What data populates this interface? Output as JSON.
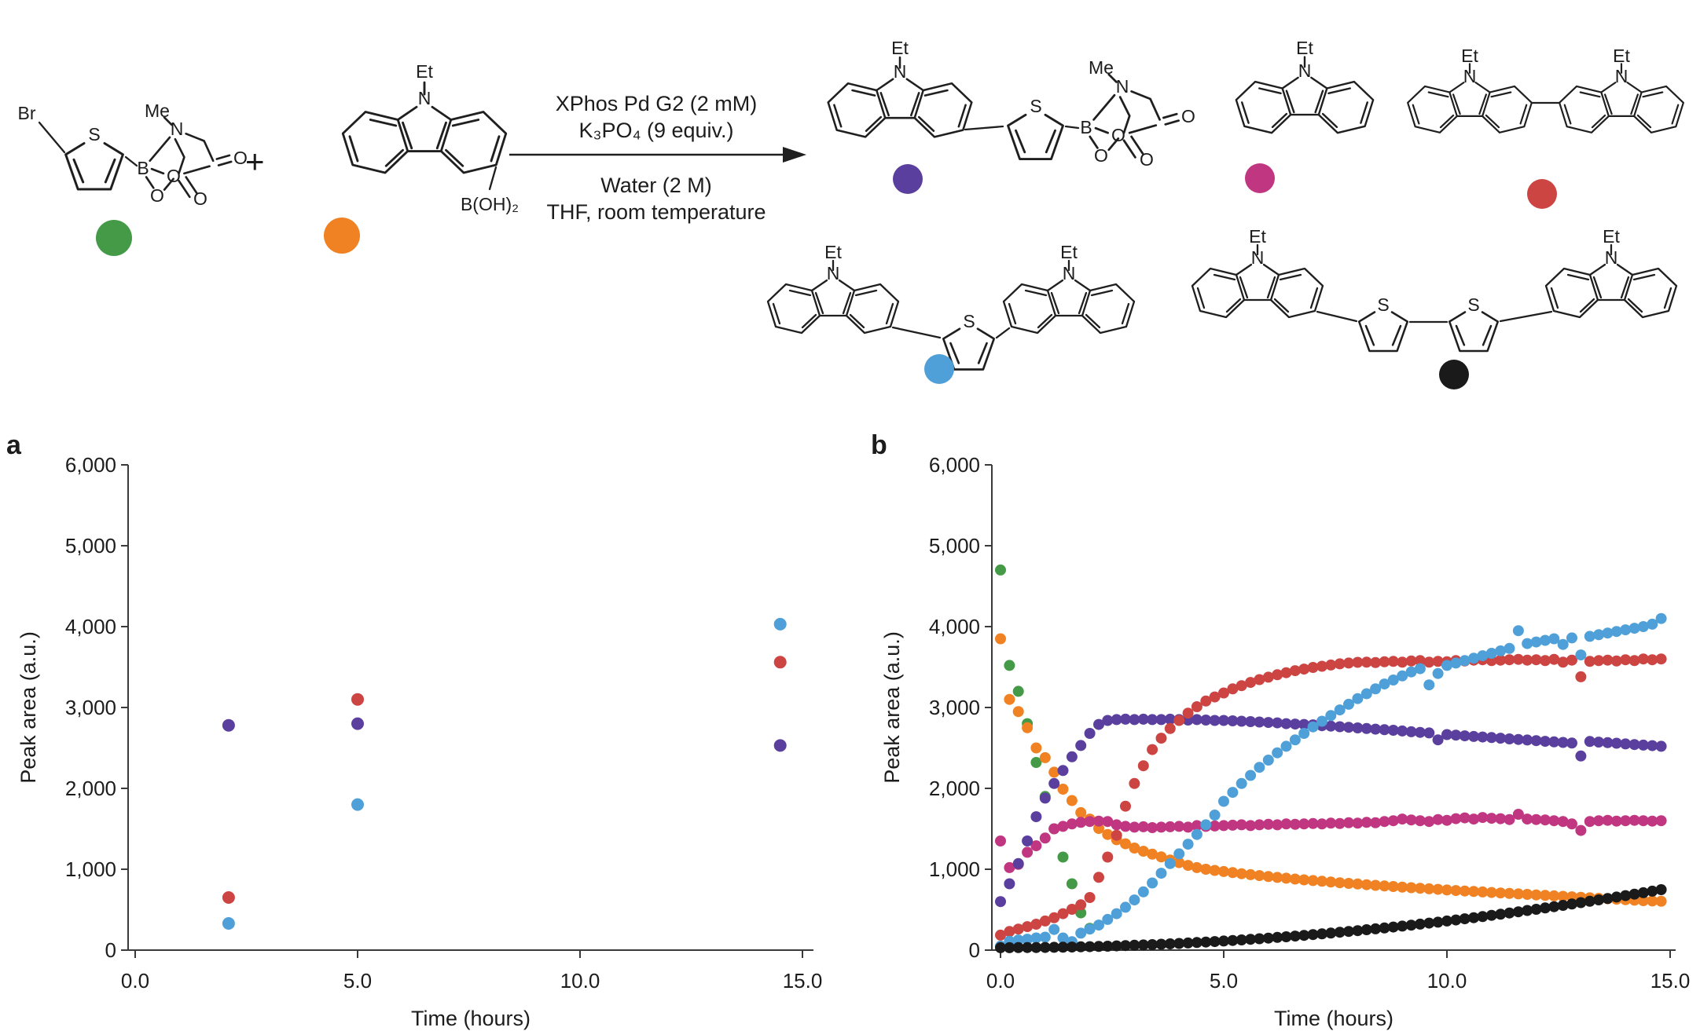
{
  "scheme": {
    "plus": "+",
    "labels": {
      "br": "Br",
      "s": "S",
      "b": "B",
      "n": "N",
      "me": "Me",
      "et": "Et",
      "o": "O",
      "boh2": "B(OH)₂"
    },
    "conditions": {
      "above1": "XPhos Pd G2 (2 mM)",
      "above2": "K₃PO₄ (9 equiv.)",
      "below1": "Water (2 M)",
      "below2": "THF, room temperature"
    },
    "compounds": [
      {
        "name": "5-bromothiophene-2-yl MIDA boronate",
        "role": "reactant",
        "color_name": "green",
        "color": "#449A47"
      },
      {
        "name": "9-ethylcarbazole-3-boronic acid",
        "role": "reactant",
        "color_name": "orange",
        "color": "#F08223"
      },
      {
        "name": "carbazolyl-thiophene MIDA boronate",
        "role": "product",
        "color_name": "purple",
        "color": "#5B3F9E"
      },
      {
        "name": "9-ethylcarbazole",
        "role": "product",
        "color_name": "magenta",
        "color": "#C13680"
      },
      {
        "name": "3,3'-bi(9-ethylcarbazole)",
        "role": "product",
        "color_name": "red",
        "color": "#CC4543"
      },
      {
        "name": "2,5-bis(carbazolyl)thiophene",
        "role": "product",
        "color_name": "blue",
        "color": "#4FA0D8"
      },
      {
        "name": "bis(carbazolyl)-2,2'-bithiophene",
        "role": "product",
        "color_name": "black",
        "color": "#1A1A1A"
      }
    ]
  },
  "chart_data": [
    {
      "id": "a",
      "panel_label": "a",
      "type": "scatter",
      "xlabel": "Time (hours)",
      "ylabel": "Peak area (a.u.)",
      "xlim": [
        0,
        15
      ],
      "ylim": [
        0,
        6000
      ],
      "grid": false,
      "legend": "none",
      "xticks": [
        0,
        5,
        10,
        15
      ],
      "xtick_labels": [
        "0.0",
        "5.0",
        "10.0",
        "15.0"
      ],
      "yticks": [
        0,
        1000,
        2000,
        3000,
        4000,
        5000,
        6000
      ],
      "ytick_labels": [
        "0",
        "1,000",
        "2,000",
        "3,000",
        "4,000",
        "5,000",
        "6,000"
      ],
      "series": [
        {
          "name": "carbazolyl-thiophene MIDA boronate (purple)",
          "color": "#5B3F9E",
          "points": [
            [
              2.1,
              2780
            ],
            [
              5.0,
              2800
            ],
            [
              14.5,
              2530
            ]
          ]
        },
        {
          "name": "3,3'-bi(9-ethylcarbazole) (red)",
          "color": "#CC4543",
          "points": [
            [
              2.1,
              650
            ],
            [
              5.0,
              3100
            ],
            [
              14.5,
              3560
            ]
          ]
        },
        {
          "name": "2,5-bis(carbazolyl)thiophene (blue)",
          "color": "#4FA0D8",
          "points": [
            [
              2.1,
              330
            ],
            [
              5.0,
              1800
            ],
            [
              14.5,
              4030
            ]
          ]
        }
      ]
    },
    {
      "id": "b",
      "panel_label": "b",
      "type": "scatter",
      "xlabel": "Time (hours)",
      "ylabel": "Peak area (a.u.)",
      "xlim": [
        0,
        15
      ],
      "ylim": [
        0,
        6000
      ],
      "grid": false,
      "legend": "none",
      "xticks": [
        0,
        5,
        10,
        15
      ],
      "xtick_labels": [
        "0.0",
        "5.0",
        "10.0",
        "15.0"
      ],
      "yticks": [
        0,
        1000,
        2000,
        3000,
        4000,
        5000,
        6000
      ],
      "ytick_labels": [
        "0",
        "1,000",
        "2,000",
        "3,000",
        "4,000",
        "5,000",
        "6,000"
      ],
      "series": [
        {
          "name": "bromothiophene MIDA boronate (green, SM)",
          "color": "#449A47",
          "t_start": 0,
          "t_step": 0.2,
          "values": [
            4700,
            3520,
            3200,
            2800,
            2320,
            1900,
            1500,
            1150,
            820,
            460,
            270
          ]
        },
        {
          "name": "9-ethylcarbazole-3-boronic acid (orange, SM)",
          "color": "#F08223",
          "t_start": 0,
          "t_step": 0.2,
          "values": [
            3850,
            3100,
            2950,
            2750,
            2500,
            2380,
            2200,
            1990,
            1850,
            1700,
            1620,
            1505,
            1430,
            1365,
            1315,
            1262,
            1222,
            1186,
            1152,
            1115,
            1082,
            1048,
            1020,
            1000,
            985,
            972,
            958,
            945,
            933,
            921,
            910,
            899,
            889,
            879,
            869,
            860,
            851,
            842,
            833,
            825,
            817,
            809,
            801,
            793,
            786,
            779,
            772,
            765,
            758,
            751,
            744,
            737,
            731,
            725,
            719,
            713,
            707,
            701,
            695,
            689,
            683,
            677,
            671,
            665,
            659,
            653,
            647,
            641,
            635,
            629,
            623,
            617,
            612,
            608,
            604
          ]
        },
        {
          "name": "9-ethylcarbazole (magenta)",
          "color": "#C13680",
          "t_start": 0,
          "t_step": 0.2,
          "values": [
            1350,
            1020,
            1060,
            1210,
            1290,
            1385,
            1500,
            1530,
            1560,
            1580,
            1590,
            1595,
            1590,
            1550,
            1530,
            1520,
            1525,
            1515,
            1520,
            1525,
            1530,
            1520,
            1540,
            1530,
            1535,
            1540,
            1545,
            1550,
            1540,
            1550,
            1555,
            1550,
            1560,
            1555,
            1560,
            1565,
            1560,
            1570,
            1565,
            1575,
            1570,
            1580,
            1575,
            1590,
            1600,
            1620,
            1610,
            1600,
            1590,
            1615,
            1605,
            1625,
            1635,
            1620,
            1640,
            1630,
            1625,
            1615,
            1680,
            1620,
            1615,
            1610,
            1600,
            1590,
            1560,
            1480,
            1590,
            1600,
            1605,
            1595,
            1600,
            1605,
            1600,
            1595,
            1600
          ]
        },
        {
          "name": "carbazolyl-thiophene MIDA boronate (purple)",
          "color": "#5B3F9E",
          "t_start": 0,
          "t_step": 0.2,
          "values": [
            600,
            820,
            1070,
            1350,
            1650,
            1880,
            2060,
            2220,
            2390,
            2530,
            2680,
            2790,
            2840,
            2850,
            2855,
            2850,
            2855,
            2850,
            2850,
            2855,
            2850,
            2845,
            2850,
            2845,
            2840,
            2840,
            2835,
            2830,
            2825,
            2820,
            2815,
            2810,
            2800,
            2795,
            2790,
            2785,
            2775,
            2770,
            2762,
            2755,
            2748,
            2740,
            2732,
            2725,
            2718,
            2710,
            2700,
            2692,
            2685,
            2600,
            2665,
            2658,
            2650,
            2642,
            2635,
            2628,
            2620,
            2612,
            2605,
            2598,
            2590,
            2582,
            2575,
            2568,
            2560,
            2400,
            2580,
            2572,
            2565,
            2558,
            2550,
            2542,
            2535,
            2528,
            2520
          ]
        },
        {
          "name": "3,3'-bi(9-ethylcarbazole) (red)",
          "color": "#CC4543",
          "t_start": 0,
          "t_step": 0.2,
          "values": [
            185,
            230,
            260,
            290,
            320,
            360,
            400,
            450,
            505,
            560,
            650,
            900,
            1150,
            1420,
            1780,
            2060,
            2280,
            2480,
            2620,
            2740,
            2840,
            2930,
            3010,
            3080,
            3130,
            3180,
            3230,
            3270,
            3310,
            3345,
            3375,
            3405,
            3430,
            3455,
            3475,
            3495,
            3510,
            3525,
            3540,
            3550,
            3558,
            3560,
            3555,
            3565,
            3570,
            3560,
            3575,
            3580,
            3560,
            3570,
            3565,
            3580,
            3575,
            3585,
            3590,
            3580,
            3585,
            3590,
            3595,
            3585,
            3590,
            3580,
            3595,
            3560,
            3585,
            3380,
            3570,
            3580,
            3585,
            3575,
            3590,
            3580,
            3600,
            3590,
            3600
          ]
        },
        {
          "name": "2,5-bis(carbazolyl)thiophene (blue)",
          "color": "#4FA0D8",
          "t_start": 0,
          "t_step": 0.2,
          "values": [
            50,
            110,
            125,
            135,
            150,
            160,
            255,
            150,
            105,
            210,
            260,
            310,
            380,
            450,
            530,
            620,
            720,
            830,
            950,
            1070,
            1190,
            1310,
            1430,
            1550,
            1670,
            1840,
            1950,
            2060,
            2160,
            2260,
            2350,
            2440,
            2520,
            2600,
            2680,
            2760,
            2830,
            2900,
            2970,
            3040,
            3110,
            3170,
            3230,
            3290,
            3340,
            3390,
            3440,
            3480,
            3280,
            3420,
            3520,
            3550,
            3580,
            3610,
            3640,
            3670,
            3700,
            3730,
            3950,
            3790,
            3810,
            3830,
            3850,
            3780,
            3860,
            3650,
            3880,
            3900,
            3920,
            3940,
            3960,
            3980,
            4000,
            4030,
            4100
          ]
        },
        {
          "name": "bis(carbazolyl)bithiophene (black)",
          "color": "#1A1A1A",
          "t_start": 0,
          "t_step": 0.2,
          "values": [
            30,
            30,
            31,
            32,
            32,
            33,
            35,
            36,
            38,
            41,
            43,
            46,
            49,
            52,
            56,
            60,
            64,
            68,
            73,
            78,
            83,
            88,
            94,
            100,
            106,
            113,
            119,
            126,
            134,
            141,
            149,
            157,
            165,
            174,
            183,
            192,
            201,
            211,
            221,
            231,
            241,
            252,
            263,
            274,
            285,
            297,
            309,
            321,
            334,
            346,
            360,
            373,
            387,
            401,
            415,
            430,
            444,
            459,
            474,
            490,
            505,
            521,
            537,
            553,
            570,
            587,
            604,
            621,
            638,
            656,
            674,
            692,
            710,
            729,
            748
          ]
        }
      ]
    }
  ]
}
